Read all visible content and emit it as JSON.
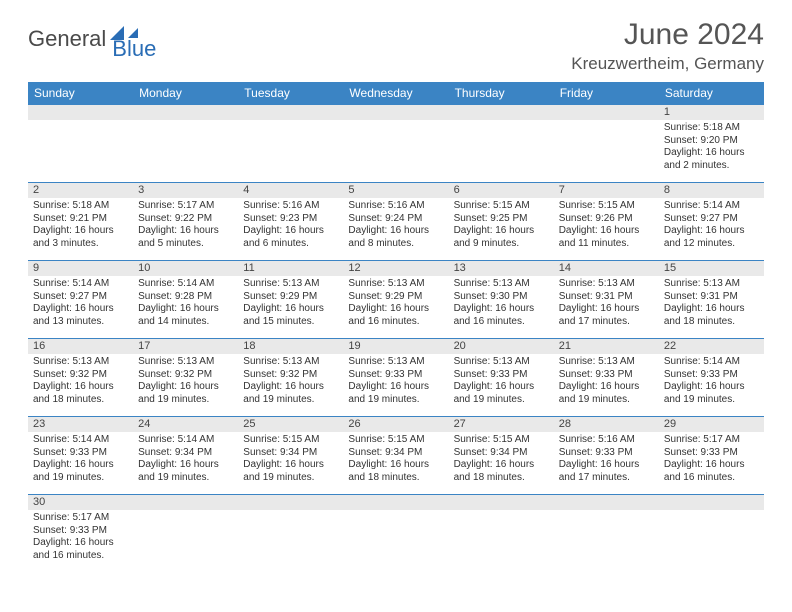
{
  "header": {
    "logo_text_a": "General",
    "logo_text_b": "Blue",
    "month_title": "June 2024",
    "location": "Kreuzwertheim, Germany"
  },
  "colors": {
    "header_bg": "#3b84c4",
    "header_text": "#ffffff",
    "daynum_bg": "#e9e9e9",
    "cell_border": "#3b84c4",
    "body_text": "#333333",
    "title_text": "#555555"
  },
  "weekdays": [
    "Sunday",
    "Monday",
    "Tuesday",
    "Wednesday",
    "Thursday",
    "Friday",
    "Saturday"
  ],
  "weeks": [
    [
      {
        "n": "",
        "sr": "",
        "ss": "",
        "dl": ""
      },
      {
        "n": "",
        "sr": "",
        "ss": "",
        "dl": ""
      },
      {
        "n": "",
        "sr": "",
        "ss": "",
        "dl": ""
      },
      {
        "n": "",
        "sr": "",
        "ss": "",
        "dl": ""
      },
      {
        "n": "",
        "sr": "",
        "ss": "",
        "dl": ""
      },
      {
        "n": "",
        "sr": "",
        "ss": "",
        "dl": ""
      },
      {
        "n": "1",
        "sr": "5:18 AM",
        "ss": "9:20 PM",
        "dl": "16 hours and 2 minutes."
      }
    ],
    [
      {
        "n": "2",
        "sr": "5:18 AM",
        "ss": "9:21 PM",
        "dl": "16 hours and 3 minutes."
      },
      {
        "n": "3",
        "sr": "5:17 AM",
        "ss": "9:22 PM",
        "dl": "16 hours and 5 minutes."
      },
      {
        "n": "4",
        "sr": "5:16 AM",
        "ss": "9:23 PM",
        "dl": "16 hours and 6 minutes."
      },
      {
        "n": "5",
        "sr": "5:16 AM",
        "ss": "9:24 PM",
        "dl": "16 hours and 8 minutes."
      },
      {
        "n": "6",
        "sr": "5:15 AM",
        "ss": "9:25 PM",
        "dl": "16 hours and 9 minutes."
      },
      {
        "n": "7",
        "sr": "5:15 AM",
        "ss": "9:26 PM",
        "dl": "16 hours and 11 minutes."
      },
      {
        "n": "8",
        "sr": "5:14 AM",
        "ss": "9:27 PM",
        "dl": "16 hours and 12 minutes."
      }
    ],
    [
      {
        "n": "9",
        "sr": "5:14 AM",
        "ss": "9:27 PM",
        "dl": "16 hours and 13 minutes."
      },
      {
        "n": "10",
        "sr": "5:14 AM",
        "ss": "9:28 PM",
        "dl": "16 hours and 14 minutes."
      },
      {
        "n": "11",
        "sr": "5:13 AM",
        "ss": "9:29 PM",
        "dl": "16 hours and 15 minutes."
      },
      {
        "n": "12",
        "sr": "5:13 AM",
        "ss": "9:29 PM",
        "dl": "16 hours and 16 minutes."
      },
      {
        "n": "13",
        "sr": "5:13 AM",
        "ss": "9:30 PM",
        "dl": "16 hours and 16 minutes."
      },
      {
        "n": "14",
        "sr": "5:13 AM",
        "ss": "9:31 PM",
        "dl": "16 hours and 17 minutes."
      },
      {
        "n": "15",
        "sr": "5:13 AM",
        "ss": "9:31 PM",
        "dl": "16 hours and 18 minutes."
      }
    ],
    [
      {
        "n": "16",
        "sr": "5:13 AM",
        "ss": "9:32 PM",
        "dl": "16 hours and 18 minutes."
      },
      {
        "n": "17",
        "sr": "5:13 AM",
        "ss": "9:32 PM",
        "dl": "16 hours and 19 minutes."
      },
      {
        "n": "18",
        "sr": "5:13 AM",
        "ss": "9:32 PM",
        "dl": "16 hours and 19 minutes."
      },
      {
        "n": "19",
        "sr": "5:13 AM",
        "ss": "9:33 PM",
        "dl": "16 hours and 19 minutes."
      },
      {
        "n": "20",
        "sr": "5:13 AM",
        "ss": "9:33 PM",
        "dl": "16 hours and 19 minutes."
      },
      {
        "n": "21",
        "sr": "5:13 AM",
        "ss": "9:33 PM",
        "dl": "16 hours and 19 minutes."
      },
      {
        "n": "22",
        "sr": "5:14 AM",
        "ss": "9:33 PM",
        "dl": "16 hours and 19 minutes."
      }
    ],
    [
      {
        "n": "23",
        "sr": "5:14 AM",
        "ss": "9:33 PM",
        "dl": "16 hours and 19 minutes."
      },
      {
        "n": "24",
        "sr": "5:14 AM",
        "ss": "9:34 PM",
        "dl": "16 hours and 19 minutes."
      },
      {
        "n": "25",
        "sr": "5:15 AM",
        "ss": "9:34 PM",
        "dl": "16 hours and 19 minutes."
      },
      {
        "n": "26",
        "sr": "5:15 AM",
        "ss": "9:34 PM",
        "dl": "16 hours and 18 minutes."
      },
      {
        "n": "27",
        "sr": "5:15 AM",
        "ss": "9:34 PM",
        "dl": "16 hours and 18 minutes."
      },
      {
        "n": "28",
        "sr": "5:16 AM",
        "ss": "9:33 PM",
        "dl": "16 hours and 17 minutes."
      },
      {
        "n": "29",
        "sr": "5:17 AM",
        "ss": "9:33 PM",
        "dl": "16 hours and 16 minutes."
      }
    ],
    [
      {
        "n": "30",
        "sr": "5:17 AM",
        "ss": "9:33 PM",
        "dl": "16 hours and 16 minutes."
      },
      {
        "n": "",
        "sr": "",
        "ss": "",
        "dl": ""
      },
      {
        "n": "",
        "sr": "",
        "ss": "",
        "dl": ""
      },
      {
        "n": "",
        "sr": "",
        "ss": "",
        "dl": ""
      },
      {
        "n": "",
        "sr": "",
        "ss": "",
        "dl": ""
      },
      {
        "n": "",
        "sr": "",
        "ss": "",
        "dl": ""
      },
      {
        "n": "",
        "sr": "",
        "ss": "",
        "dl": ""
      }
    ]
  ],
  "labels": {
    "sunrise": "Sunrise: ",
    "sunset": "Sunset: ",
    "daylight": "Daylight: "
  }
}
